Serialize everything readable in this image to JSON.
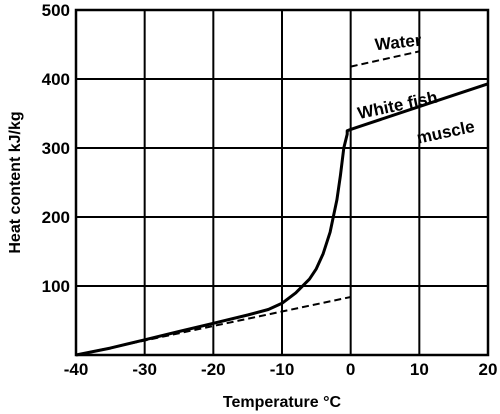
{
  "chart_data": {
    "type": "line",
    "title": "",
    "xlabel": "Temperature °C",
    "ylabel": "Heat content  kJ/kg",
    "xlim": [
      -40,
      20
    ],
    "ylim": [
      0,
      500
    ],
    "x_ticks": [
      -40,
      -30,
      -20,
      -10,
      0,
      10,
      20
    ],
    "x_tick_labels": [
      "-40",
      "-30",
      "-20",
      "-10",
      "0",
      "10",
      "20"
    ],
    "y_ticks": [
      0,
      100,
      200,
      300,
      400,
      500
    ],
    "y_tick_labels": [
      "",
      "100",
      "200",
      "300",
      "400",
      "500"
    ],
    "grid": true,
    "series": [
      {
        "name": "White fish muscle",
        "style": "solid",
        "x": [
          -40,
          -35,
          -30,
          -25,
          -20,
          -15,
          -12,
          -10,
          -8,
          -6,
          -5,
          -4,
          -3,
          -2,
          -1.5,
          -1,
          -0.5,
          -0.5,
          0,
          10,
          20
        ],
        "y": [
          0,
          10,
          22,
          34,
          46,
          58,
          66,
          75,
          90,
          110,
          125,
          147,
          178,
          225,
          260,
          300,
          320,
          325,
          327,
          360,
          393
        ]
      },
      {
        "name": "Water",
        "style": "dashed",
        "x": [
          -40,
          -30,
          -20,
          -10,
          0
        ],
        "y": [
          0,
          21,
          42,
          63,
          84
        ]
      },
      {
        "name": "Water",
        "style": "dashed",
        "x": [
          0,
          10
        ],
        "y": [
          418,
          440
        ]
      }
    ],
    "annotations": [
      {
        "text": "Water",
        "x": 7,
        "y": 445,
        "rotate": -6
      },
      {
        "text": "White  fish",
        "x": 7,
        "y": 354,
        "rotate": -12
      },
      {
        "text": "muscle",
        "x": 14,
        "y": 315,
        "rotate": -12
      }
    ]
  }
}
